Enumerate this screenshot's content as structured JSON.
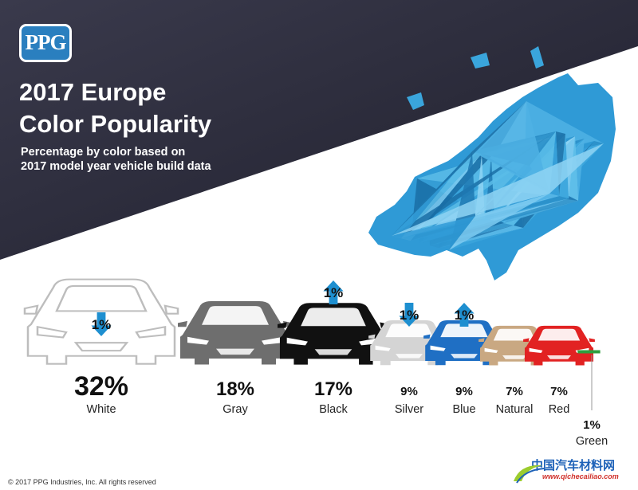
{
  "logo": {
    "text": "PPG",
    "color": "#2a7fbf"
  },
  "title": {
    "line1": "2017 Europe",
    "line2": "Color Popularity"
  },
  "subtitle": {
    "line1": "Percentage by color based on",
    "line2": "2017 model year vehicle build data"
  },
  "footer": "© 2017 PPG Industries, Inc. All rights reserved",
  "watermark": {
    "main": "中国汽车材料网",
    "url": "www.qichecailiao.com"
  },
  "colors": {
    "band": "#2c2c3c",
    "accent": "#1e8fd0",
    "map": "#3aa5dc"
  },
  "chart_data": {
    "type": "bar",
    "title": "2017 Europe Color Popularity",
    "categories": [
      "White",
      "Gray",
      "Black",
      "Silver",
      "Blue",
      "Natural",
      "Red",
      "Green"
    ],
    "values": [
      32,
      18,
      17,
      9,
      9,
      7,
      7,
      1
    ],
    "value_labels": [
      "32%",
      "18%",
      "17%",
      "9%",
      "9%",
      "7%",
      "7%",
      "1%"
    ],
    "car_colors": [
      "#ffffff",
      "#6e6e6e",
      "#111111",
      "#d4d4d4",
      "#1f6fc4",
      "#c9a882",
      "#e22222",
      "#2e9e3e"
    ],
    "changes": [
      {
        "category": "White",
        "direction": "down",
        "label": "1%"
      },
      {
        "category": "Black",
        "direction": "up",
        "label": "1%"
      },
      {
        "category": "Silver",
        "direction": "down",
        "label": "1%"
      },
      {
        "category": "Blue",
        "direction": "up",
        "label": "1%"
      }
    ]
  }
}
